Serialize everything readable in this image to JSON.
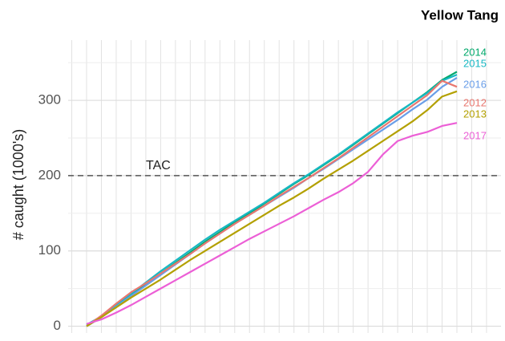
{
  "chart_data": {
    "type": "line",
    "title": "Yellow Tang",
    "y_label": "# caught (1000's)",
    "categories": [
      null,
      null,
      null,
      null,
      null,
      null,
      null,
      null,
      null,
      null,
      null,
      null,
      null,
      null,
      null,
      null,
      null,
      null,
      null,
      null,
      null,
      null,
      null,
      null,
      null,
      null
    ],
    "series": [
      {
        "name": "2014",
        "color": "#00a86b",
        "values": [
          0,
          12,
          27,
          42,
          56,
          70,
          84,
          98,
          112,
          125,
          138,
          150,
          163,
          176,
          189,
          201,
          214,
          227,
          241,
          255,
          269,
          283,
          297,
          311,
          327,
          338
        ]
      },
      {
        "name": "2015",
        "color": "#17b8c4",
        "values": [
          2,
          13,
          28,
          43,
          58,
          73,
          87,
          101,
          115,
          128,
          140,
          152,
          164,
          177,
          190,
          202,
          215,
          228,
          242,
          256,
          270,
          284,
          297,
          310,
          326,
          334
        ]
      },
      {
        "name": "2016",
        "color": "#6a9ee8",
        "values": [
          0,
          12,
          26,
          40,
          54,
          68,
          82,
          96,
          110,
          123,
          136,
          148,
          160,
          172,
          184,
          197,
          209,
          222,
          235,
          248,
          261,
          274,
          288,
          301,
          318,
          330
        ]
      },
      {
        "name": "2012",
        "color": "#e8776f",
        "values": [
          0,
          14,
          30,
          45,
          57,
          70,
          83,
          96,
          110,
          123,
          136,
          148,
          160,
          173,
          185,
          197,
          210,
          223,
          237,
          251,
          265,
          279,
          293,
          307,
          326,
          318
        ]
      },
      {
        "name": "2013",
        "color": "#b3a000",
        "values": [
          0,
          12,
          25,
          38,
          50,
          62,
          75,
          88,
          100,
          112,
          124,
          136,
          148,
          160,
          171,
          183,
          196,
          208,
          220,
          233,
          246,
          259,
          272,
          287,
          305,
          312
        ]
      },
      {
        "name": "2017",
        "color": "#ec5fd6",
        "values": [
          3,
          9,
          18,
          28,
          39,
          50,
          61,
          72,
          83,
          94,
          105,
          116,
          126,
          136,
          146,
          157,
          168,
          178,
          190,
          205,
          228,
          246,
          253,
          258,
          266,
          270
        ]
      }
    ],
    "hline": {
      "value": 200,
      "label": "TAC"
    },
    "ylim": [
      -9,
      380
    ],
    "yticks": [
      0,
      100,
      200,
      300
    ],
    "grid": true
  }
}
